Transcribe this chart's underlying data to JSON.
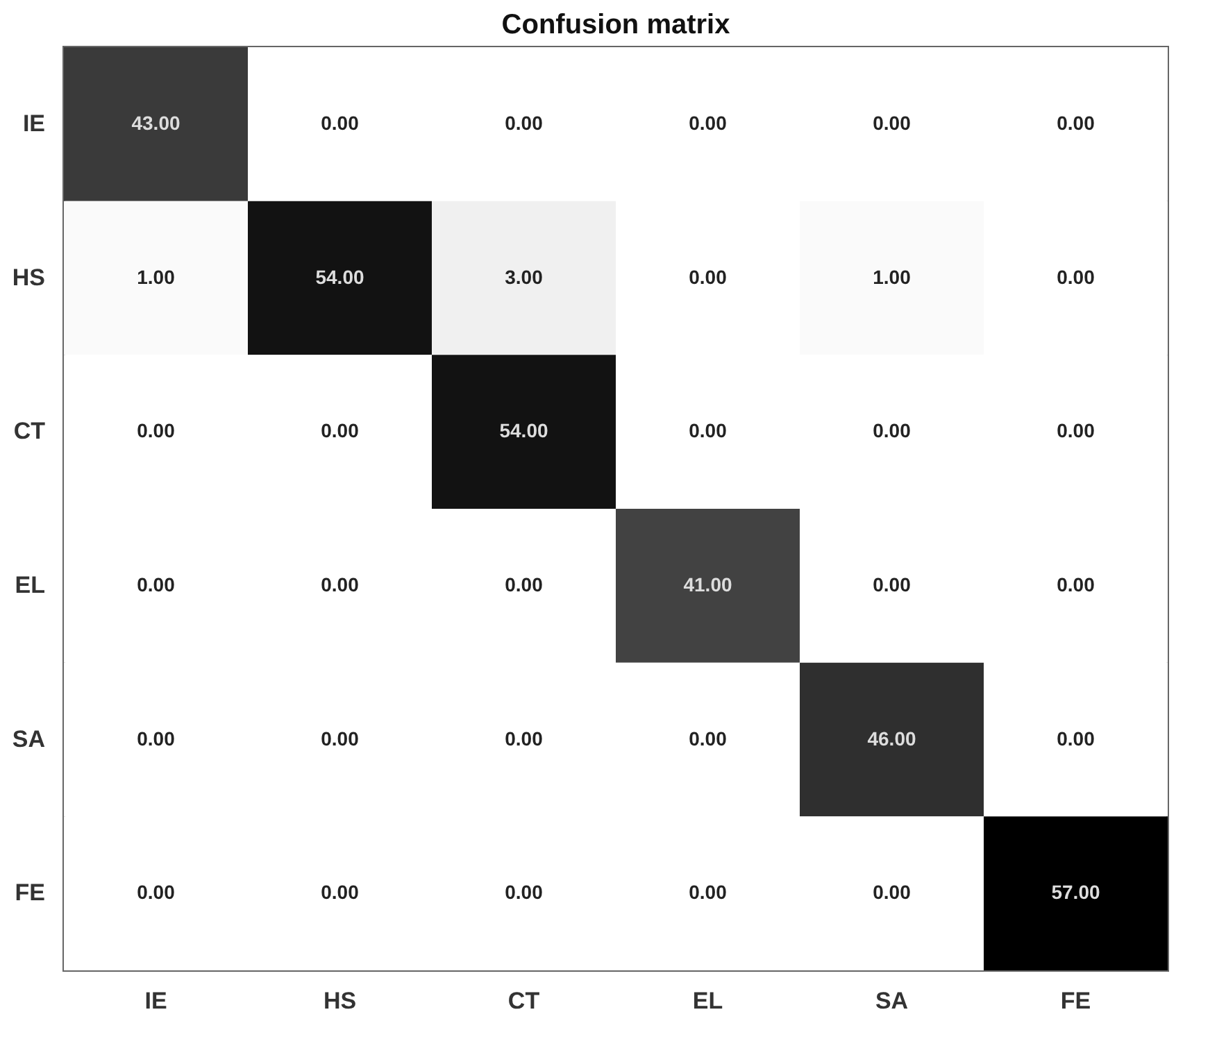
{
  "chart_data": {
    "type": "heatmap",
    "title": "Confusion matrix",
    "categories": [
      "IE",
      "HS",
      "CT",
      "EL",
      "SA",
      "FE"
    ],
    "y_categories": [
      "IE",
      "HS",
      "CT",
      "EL",
      "SA",
      "FE"
    ],
    "cells": [
      [
        43,
        0,
        0,
        0,
        0,
        0
      ],
      [
        1,
        54,
        3,
        0,
        1,
        0
      ],
      [
        0,
        0,
        54,
        0,
        0,
        0
      ],
      [
        0,
        0,
        0,
        41,
        0,
        0
      ],
      [
        0,
        0,
        0,
        0,
        46,
        0
      ],
      [
        0,
        0,
        0,
        0,
        0,
        57
      ]
    ],
    "cell_labels": [
      [
        "43.00",
        "0.00",
        "0.00",
        "0.00",
        "0.00",
        "0.00"
      ],
      [
        "1.00",
        "54.00",
        "3.00",
        "0.00",
        "1.00",
        "0.00"
      ],
      [
        "0.00",
        "0.00",
        "54.00",
        "0.00",
        "0.00",
        "0.00"
      ],
      [
        "0.00",
        "0.00",
        "0.00",
        "41.00",
        "0.00",
        "0.00"
      ],
      [
        "0.00",
        "0.00",
        "0.00",
        "0.00",
        "46.00",
        "0.00"
      ],
      [
        "0.00",
        "0.00",
        "0.00",
        "0.00",
        "0.00",
        "57.00"
      ]
    ]
  }
}
